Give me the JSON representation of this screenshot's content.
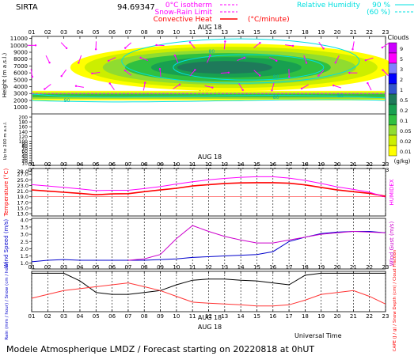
{
  "header": {
    "site": "SIRTA",
    "coords": "94.69347",
    "legend_left": [
      {
        "label": "0°C isotherm",
        "color": "#ff00ff"
      },
      {
        "label": "Snow-Rain Limit",
        "color": "#ff00ff"
      },
      {
        "label": "Convective Heat",
        "color": "#ff0000"
      }
    ],
    "legend_left_unit": "(°C/minute)",
    "legend_right": [
      {
        "label": "Relative Humidity",
        "value": "90 %",
        "color": "#00e0e0"
      },
      {
        "label": "",
        "value": "(60 %)",
        "color": "#00e0e0"
      }
    ]
  },
  "footer": {
    "title": "Modele Atmospherique LMDZ / Forecast starting on 20220818 at 0hUT",
    "time_label": "Universal Time"
  },
  "colors": {
    "temp": "#ff0000",
    "humidex": "#ff00ff",
    "wind": "#0000cc",
    "gust": "#cc00cc",
    "rain": "#000000",
    "cape": "#ff3333",
    "rh": "#00e0e0"
  },
  "chart_data": [
    {
      "type": "heatmap",
      "title": "Clouds",
      "date_label": "AUG 18",
      "x": [
        "01",
        "02",
        "03",
        "04",
        "05",
        "06",
        "07",
        "08",
        "09",
        "10",
        "11",
        "12",
        "13",
        "14",
        "15",
        "16",
        "17",
        "18",
        "19",
        "20",
        "21",
        "22",
        "23"
      ],
      "ylabel": "Height (m a.s.l.)",
      "yticks_upper": [
        1000,
        2000,
        3000,
        4000,
        5000,
        6000,
        7000,
        8000,
        9000,
        10000,
        11000
      ],
      "yticks_lower": [
        10,
        20,
        30,
        40,
        50,
        60,
        70,
        80,
        90,
        100,
        120,
        140,
        160,
        180,
        200
      ],
      "ylabel_lower": "Up to 200 m a.s.l.",
      "colorbar": {
        "unit": "(g/kg)",
        "ticks": [
          "9",
          "5",
          "3",
          "2",
          "1",
          "0.5",
          "0.2",
          "0.1",
          "0.05",
          "0.02",
          "0.01"
        ],
        "colors": [
          "#cc00ff",
          "#ff00ff",
          "#8080ff",
          "#0000ff",
          "#3355cc",
          "#1e7a5a",
          "#18a050",
          "#30c040",
          "#90dc30",
          "#ccee00",
          "#ffff00"
        ]
      },
      "contour_labels": [
        "80",
        "90",
        "80",
        "90",
        "80",
        "90"
      ]
    },
    {
      "type": "line",
      "date_label": "AUG 18",
      "ylabel": "Temperature (°C)",
      "ylabel_right": "HUMIDEX",
      "yticks": [
        "13.0",
        "15.0",
        "17.0",
        "19.0",
        "21.0",
        "23.0",
        "25.0",
        "27.0",
        "28.0"
      ],
      "series": [
        {
          "name": "Temperature",
          "values": [
            21.4,
            21,
            20.6,
            20.2,
            19.7,
            20,
            20.1,
            20.8,
            21.4,
            22,
            22.8,
            23.3,
            23.7,
            23.9,
            24,
            24,
            23.8,
            23.2,
            22.3,
            21.4,
            20.8,
            20.2,
            19.2
          ]
        },
        {
          "name": "HUMIDEX",
          "values": [
            23.3,
            22.8,
            22.3,
            21.8,
            21.2,
            21.3,
            21.3,
            21.9,
            22.6,
            23.5,
            24.3,
            25,
            25.5,
            25.9,
            26.1,
            26.1,
            25.6,
            24.8,
            23.7,
            22.5,
            21.6,
            20.6,
            18.9
          ]
        }
      ]
    },
    {
      "type": "line",
      "ylabel": "Wind Speed (m/s)",
      "ylabel_right": "Wind Gust (m/s)",
      "yticks": [
        "1.0",
        "1.5",
        "2.0",
        "2.5",
        "3.0",
        "3.5",
        "4.0"
      ],
      "series": [
        {
          "name": "Wind Speed",
          "values": [
            1.1,
            1.2,
            1.25,
            1.2,
            1.2,
            1.2,
            1.2,
            1.2,
            1.25,
            1.3,
            1.4,
            1.45,
            1.5,
            1.55,
            1.6,
            1.8,
            2.5,
            2.8,
            3.05,
            3.15,
            3.2,
            3.2,
            3.1
          ]
        },
        {
          "name": "Wind Gust",
          "values": [
            null,
            null,
            null,
            null,
            null,
            null,
            1.2,
            1.3,
            1.6,
            2.7,
            3.6,
            3.2,
            2.85,
            2.6,
            2.4,
            2.4,
            2.6,
            2.8,
            3,
            3.1,
            3.2,
            3.15,
            3.1
          ]
        }
      ]
    },
    {
      "type": "line",
      "date_label": "AUG 18",
      "ylabel": "Rain (mm / hour) / Snow (cm / hour)",
      "ylabel_right": "CAPE (J / g) / Snow Depth (cm) / Cloud Fraction",
      "series": [
        {
          "name": "Cloud Fraction",
          "values": [
            1,
            1,
            1,
            0.8,
            0.5,
            0.45,
            0.45,
            0.5,
            0.55,
            0.7,
            0.82,
            0.85,
            0.85,
            0.82,
            0.8,
            0.75,
            0.7,
            0.95,
            1,
            1,
            1,
            1,
            1
          ]
        },
        {
          "name": "CAPE",
          "values": [
            0.35,
            0.45,
            0.55,
            0.6,
            0.65,
            0.7,
            0.75,
            0.65,
            0.55,
            0.4,
            0.25,
            0.22,
            0.2,
            0.18,
            0.15,
            0.15,
            0.18,
            0.3,
            0.45,
            0.5,
            0.55,
            0.4,
            0.2
          ]
        }
      ]
    }
  ]
}
